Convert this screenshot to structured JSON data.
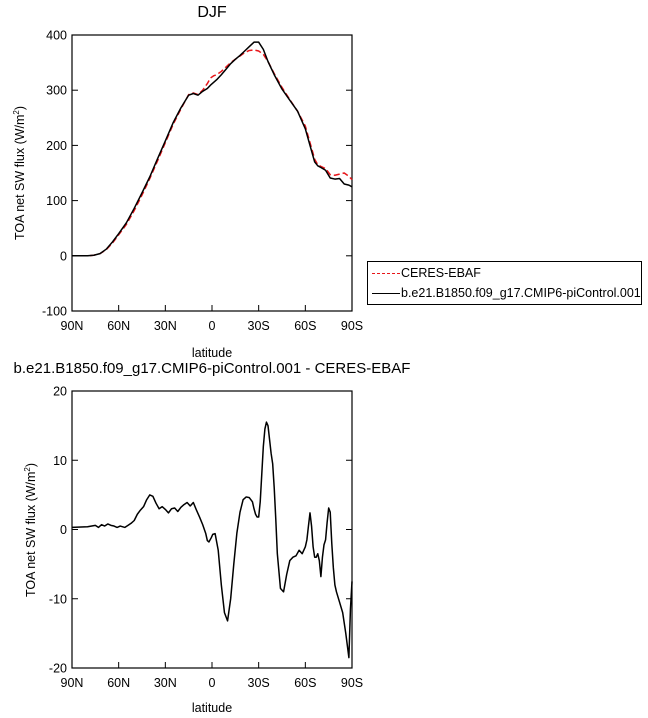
{
  "chart_data": [
    {
      "type": "line",
      "title": "DJF",
      "xlabel": "latitude",
      "ylabel": "TOA net SW flux (W/m^2)",
      "ylabel_main": "TOA net SW flux (W/m",
      "ylabel_unit_sup": "2",
      "ylabel_close": ")",
      "xlim": [
        90,
        -90
      ],
      "ylim": [
        -100,
        400
      ],
      "x_ticks": [
        90,
        60,
        30,
        0,
        -30,
        -60,
        -90
      ],
      "x_tick_labels": [
        "90N",
        "60N",
        "30N",
        "0",
        "30S",
        "60S",
        "90S"
      ],
      "y_ticks": [
        -100,
        0,
        100,
        200,
        300,
        400
      ],
      "y_tick_labels": [
        "-100",
        "0",
        "100",
        "200",
        "300",
        "400"
      ],
      "grid": false,
      "legend_position": "right, outside plot",
      "series": [
        {
          "name": "CERES-EBAF",
          "color": "#e8161a",
          "dash": "dashed",
          "x": [
            90,
            85,
            80,
            76,
            72,
            68,
            64,
            60,
            55,
            50,
            45,
            40,
            35,
            30,
            25,
            20,
            15,
            12,
            9,
            6,
            3,
            1,
            -1,
            -3,
            -6,
            -9,
            -12,
            -15,
            -18,
            -21,
            -24,
            -27,
            -30,
            -33,
            -36,
            -40,
            -45,
            -50,
            -55,
            -60,
            -63,
            -66,
            -68,
            -70,
            -73,
            -76,
            -79,
            -82,
            -85,
            -88,
            -90
          ],
          "y": [
            0,
            0,
            0,
            1,
            4,
            11,
            23,
            38,
            57,
            82,
            110,
            140,
            172,
            205,
            238,
            266,
            292,
            295,
            292,
            300,
            312,
            322,
            326,
            328,
            334,
            342,
            350,
            356,
            362,
            368,
            372,
            373,
            371,
            365,
            352,
            330,
            305,
            283,
            262,
            235,
            205,
            175,
            165,
            162,
            158,
            147,
            146,
            148,
            150,
            144,
            138
          ]
        },
        {
          "name": "b.e21.B1850.f09_g17.CMIP6-piControl.001",
          "color": "#000000",
          "dash": "solid",
          "x": [
            90,
            85,
            80,
            76,
            72,
            68,
            64,
            60,
            55,
            50,
            45,
            40,
            35,
            30,
            25,
            20,
            15,
            12,
            9,
            6,
            3,
            1,
            -1,
            -3,
            -6,
            -9,
            -12,
            -15,
            -18,
            -21,
            -24,
            -27,
            -30,
            -33,
            -36,
            -40,
            -45,
            -50,
            -55,
            -60,
            -63,
            -66,
            -68,
            -70,
            -73,
            -76,
            -79,
            -82,
            -85,
            -88,
            -90
          ],
          "y": [
            0,
            0,
            0,
            1,
            4,
            12,
            25,
            40,
            60,
            86,
            114,
            143,
            176,
            208,
            241,
            268,
            291,
            294,
            291,
            298,
            303,
            309,
            314,
            319,
            328,
            338,
            348,
            356,
            363,
            371,
            379,
            387,
            387,
            374,
            352,
            328,
            302,
            282,
            262,
            230,
            200,
            170,
            163,
            160,
            155,
            141,
            139,
            140,
            130,
            128,
            125
          ]
        }
      ]
    },
    {
      "type": "line",
      "title": "b.e21.B1850.f09_g17.CMIP6-piControl.001 - CERES-EBAF",
      "xlabel": "latitude",
      "ylabel": "TOA net SW flux (W/m^2)",
      "ylabel_main": "TOA net SW flux (W/m",
      "ylabel_unit_sup": "2",
      "ylabel_close": ")",
      "xlim": [
        90,
        -90
      ],
      "ylim": [
        -20,
        20
      ],
      "x_ticks": [
        90,
        60,
        30,
        0,
        -30,
        -60,
        -90
      ],
      "x_tick_labels": [
        "90N",
        "60N",
        "30N",
        "0",
        "30S",
        "60S",
        "90S"
      ],
      "y_ticks": [
        -20,
        -10,
        0,
        10,
        20
      ],
      "y_tick_labels": [
        "-20",
        "-10",
        "0",
        "10",
        "20"
      ],
      "grid": false,
      "series": [
        {
          "name": "",
          "color": "#000000",
          "dash": "solid",
          "x": [
            90,
            80,
            75,
            73,
            71,
            69,
            67,
            65,
            63,
            61,
            59,
            56,
            54,
            52,
            50,
            48,
            46,
            44,
            42,
            40,
            38,
            36,
            34,
            32,
            30,
            28,
            26,
            24,
            22,
            20,
            18,
            16,
            14,
            12,
            10,
            8,
            6,
            4,
            3,
            2,
            0.5,
            -0.5,
            -2,
            -4,
            -6,
            -8,
            -10,
            -12,
            -14,
            -16,
            -18,
            -20,
            -22,
            -24,
            -26,
            -27,
            -28,
            -29,
            -30,
            -31,
            -32,
            -33,
            -34,
            -35,
            -36,
            -37,
            -38,
            -39,
            -40,
            -41,
            -42,
            -44,
            -46,
            -48,
            -50,
            -52,
            -54,
            -56,
            -58,
            -60,
            -61,
            -62,
            -63,
            -64,
            -65,
            -66,
            -67,
            -68,
            -69,
            -70,
            -71,
            -72,
            -73,
            -74,
            -75,
            -76,
            -77,
            -78,
            -79,
            -80,
            -82,
            -84,
            -86,
            -88,
            -89,
            -90
          ],
          "y": [
            0.3,
            0.4,
            0.6,
            0.3,
            0.7,
            0.5,
            0.8,
            0.6,
            0.5,
            0.3,
            0.5,
            0.3,
            0.6,
            0.9,
            1.3,
            2.2,
            2.8,
            3.3,
            4.3,
            5.0,
            4.8,
            3.8,
            3.0,
            3.3,
            2.9,
            2.4,
            3.0,
            3.1,
            2.6,
            3.2,
            3.6,
            3.9,
            3.4,
            3.9,
            2.8,
            1.8,
            0.7,
            -0.6,
            -1.6,
            -1.8,
            -1.2,
            -0.7,
            -0.6,
            -3.0,
            -8.0,
            -12.0,
            -13.2,
            -10.0,
            -5.0,
            -0.5,
            2.5,
            4.3,
            4.7,
            4.6,
            4.0,
            3.0,
            2.2,
            1.8,
            1.8,
            4.0,
            8.0,
            12.0,
            14.5,
            15.5,
            15.0,
            13.0,
            11.0,
            9.5,
            6.0,
            1.5,
            -3.5,
            -8.5,
            -9.0,
            -6.5,
            -4.5,
            -4.0,
            -3.8,
            -3.0,
            -3.5,
            -2.5,
            -1.5,
            0.5,
            2.4,
            0.5,
            -2.5,
            -4.0,
            -4.0,
            -3.5,
            -4.5,
            -6.8,
            -4.0,
            -2.2,
            -1.5,
            1.0,
            3.1,
            2.5,
            -2.0,
            -5.5,
            -8.0,
            -9.0,
            -10.5,
            -12.0,
            -15.0,
            -18.5,
            -11.5,
            -7.5
          ]
        }
      ]
    }
  ]
}
